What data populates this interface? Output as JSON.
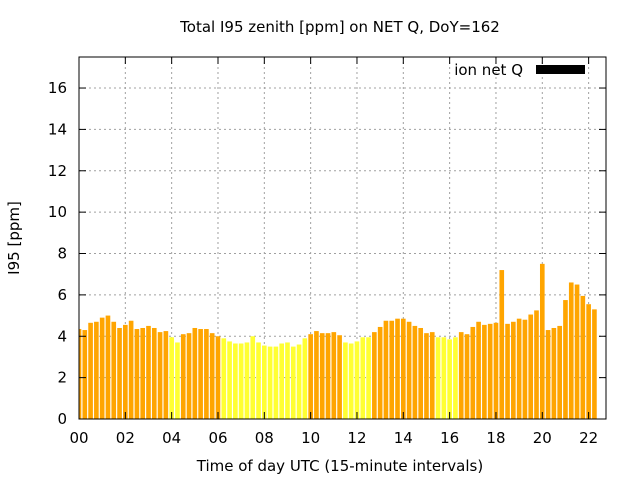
{
  "chart_data": {
    "type": "bar",
    "title": "Total I95 zenith [ppm] on NET Q, DoY=162",
    "xlabel": "Time of day UTC (15-minute intervals)",
    "ylabel": "I95 [ppm]",
    "legend": {
      "label": "ion net Q",
      "placement": "top-right",
      "swatch_color": "#000000"
    },
    "ylim": [
      0,
      17.5
    ],
    "yticks": [
      "0",
      "2",
      "4",
      "6",
      "8",
      "10",
      "12",
      "14",
      "16"
    ],
    "xlim_hours": [
      0,
      22.75
    ],
    "xticks": [
      "00",
      "02",
      "04",
      "06",
      "08",
      "10",
      "12",
      "14",
      "16",
      "18",
      "20",
      "22"
    ],
    "grid": true,
    "colors": {
      "high": "#ffa500",
      "low": "#ffff33",
      "grid": "#a0a0a0",
      "axis": "#000000"
    },
    "interval_minutes": 15,
    "values": [
      4.35,
      4.3,
      4.65,
      4.7,
      4.9,
      5.0,
      4.7,
      4.4,
      4.55,
      4.75,
      4.35,
      4.4,
      4.5,
      4.4,
      4.2,
      4.25,
      3.95,
      3.7,
      4.1,
      4.15,
      4.4,
      4.35,
      4.35,
      4.15,
      4.0,
      3.9,
      3.75,
      3.65,
      3.65,
      3.7,
      4.0,
      3.7,
      3.55,
      3.5,
      3.5,
      3.65,
      3.7,
      3.5,
      3.6,
      3.9,
      4.1,
      4.25,
      4.15,
      4.15,
      4.2,
      4.05,
      3.7,
      3.65,
      3.75,
      3.95,
      3.95,
      4.2,
      4.45,
      4.75,
      4.75,
      4.85,
      4.85,
      4.7,
      4.5,
      4.4,
      4.15,
      4.2,
      3.95,
      3.95,
      3.85,
      3.95,
      4.2,
      4.1,
      4.45,
      4.7,
      4.55,
      4.6,
      4.65,
      7.2,
      4.6,
      4.7,
      4.85,
      4.8,
      5.05,
      5.25,
      7.5,
      4.3,
      4.4,
      4.5,
      5.75,
      6.6,
      6.5,
      5.95,
      5.55,
      5.3
    ],
    "bar_colors": [
      "high",
      "high",
      "high",
      "high",
      "high",
      "high",
      "high",
      "high",
      "high",
      "high",
      "high",
      "high",
      "high",
      "high",
      "high",
      "high",
      "low",
      "low",
      "high",
      "high",
      "high",
      "high",
      "high",
      "high",
      "high",
      "low",
      "low",
      "low",
      "low",
      "low",
      "low",
      "low",
      "low",
      "low",
      "low",
      "low",
      "low",
      "low",
      "low",
      "low",
      "high",
      "high",
      "high",
      "high",
      "high",
      "high",
      "low",
      "low",
      "low",
      "low",
      "low",
      "high",
      "high",
      "high",
      "high",
      "high",
      "high",
      "high",
      "high",
      "high",
      "high",
      "high",
      "low",
      "low",
      "low",
      "low",
      "high",
      "high",
      "high",
      "high",
      "high",
      "high",
      "high",
      "high",
      "high",
      "high",
      "high",
      "high",
      "high",
      "high",
      "high",
      "high",
      "high",
      "high",
      "high",
      "high",
      "high",
      "high",
      "high",
      "high"
    ]
  }
}
